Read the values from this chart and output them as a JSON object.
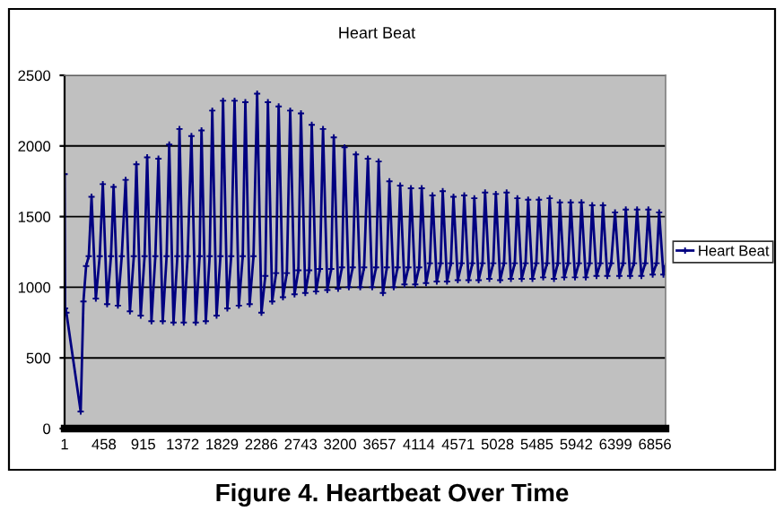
{
  "chart_data": {
    "type": "line",
    "title": "Heart Beat",
    "annotations": [
      "Figure 4. Heartbeat Over Time"
    ],
    "x": [
      1,
      7,
      22,
      188,
      220,
      251,
      282,
      314,
      364,
      409,
      445,
      495,
      540,
      570,
      620,
      665,
      710,
      760,
      805,
      835,
      885,
      930,
      960,
      1010,
      1055,
      1091,
      1141,
      1186,
      1216,
      1266,
      1311,
      1335,
      1385,
      1430,
      1474,
      1524,
      1569,
      1591,
      1641,
      1686,
      1716,
      1766,
      1811,
      1841,
      1891,
      1936,
      1975,
      2025,
      2070,
      2100,
      2150,
      2195,
      2237,
      2287,
      2332,
      2362,
      2412,
      2457,
      2487,
      2537,
      2582,
      2621,
      2671,
      2716,
      2746,
      2796,
      2841,
      2871,
      2921,
      2966,
      3002,
      3052,
      3097,
      3127,
      3177,
      3222,
      3252,
      3302,
      3347,
      3384,
      3434,
      3479,
      3523,
      3573,
      3618,
      3648,
      3698,
      3743,
      3773,
      3823,
      3868,
      3898,
      3948,
      3993,
      4023,
      4073,
      4118,
      4148,
      4198,
      4243,
      4273,
      4323,
      4368,
      4392,
      4442,
      4487,
      4517,
      4567,
      4612,
      4642,
      4692,
      4737,
      4759,
      4809,
      4854,
      4884,
      4934,
      4979,
      5009,
      5059,
      5104,
      5134,
      5184,
      5229,
      5259,
      5309,
      5354,
      5384,
      5434,
      5479,
      5509,
      5559,
      5604,
      5634,
      5684,
      5729,
      5753,
      5803,
      5848,
      5878,
      5928,
      5973,
      6003,
      6053,
      6098,
      6128,
      6178,
      6223,
      6253,
      6303,
      6348,
      6393,
      6443,
      6488,
      6518,
      6568,
      6613,
      6649,
      6699,
      6744,
      6780,
      6830,
      6875,
      6905,
      6955,
      6980
    ],
    "series": [
      {
        "name": "Heart Beat",
        "color": "#000080",
        "values": [
          1800,
          850,
          820,
          120,
          900,
          1150,
          1220,
          1640,
          920,
          1220,
          1730,
          880,
          1220,
          1710,
          870,
          1220,
          1760,
          830,
          1220,
          1870,
          800,
          1220,
          1920,
          760,
          1220,
          1910,
          760,
          1220,
          2010,
          750,
          1220,
          2120,
          750,
          1220,
          2070,
          750,
          1220,
          2110,
          760,
          1220,
          2250,
          800,
          1220,
          2320,
          850,
          1220,
          2320,
          870,
          1220,
          2310,
          880,
          1220,
          2370,
          820,
          1080,
          2310,
          900,
          1100,
          2280,
          930,
          1100,
          2250,
          950,
          1120,
          2230,
          960,
          1120,
          2150,
          970,
          1130,
          2120,
          980,
          1130,
          2060,
          990,
          1140,
          1990,
          1000,
          1140,
          1940,
          1000,
          1140,
          1910,
          1000,
          1140,
          1890,
          960,
          1140,
          1750,
          1000,
          1140,
          1720,
          1020,
          1140,
          1700,
          1020,
          1140,
          1700,
          1030,
          1170,
          1650,
          1040,
          1170,
          1680,
          1040,
          1170,
          1640,
          1050,
          1170,
          1650,
          1050,
          1170,
          1630,
          1050,
          1170,
          1670,
          1060,
          1170,
          1660,
          1050,
          1170,
          1670,
          1060,
          1170,
          1630,
          1060,
          1170,
          1620,
          1060,
          1170,
          1620,
          1070,
          1170,
          1630,
          1060,
          1170,
          1600,
          1070,
          1170,
          1600,
          1070,
          1170,
          1600,
          1070,
          1170,
          1580,
          1080,
          1170,
          1580,
          1080,
          1170,
          1530,
          1080,
          1170,
          1550,
          1080,
          1170,
          1550,
          1080,
          1170,
          1550,
          1090,
          1170,
          1530,
          1090,
          1150
        ]
      }
    ],
    "xlim": [
      1,
      6980
    ],
    "xticks": [
      1,
      458,
      915,
      1372,
      1829,
      2286,
      2743,
      3200,
      3657,
      4114,
      4571,
      5028,
      5485,
      5942,
      6399,
      6856
    ],
    "ylim": [
      0,
      2500
    ],
    "yticks": [
      0,
      500,
      1000,
      1500,
      2000,
      2500
    ],
    "grid": "y",
    "legend": "right",
    "marker": "cross",
    "line_style": "solid"
  }
}
